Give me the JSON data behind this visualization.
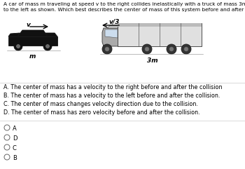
{
  "question_line1": "A car of mass m traveling at speed v to the right collides inelastically with a truck of mass 3m traveling at speed v/3",
  "question_line2": "to the left as shown. Which best describes the center of mass of this system before and after the collision?",
  "option_A": "A. The center of mass has a velocity to the right before and after the collision",
  "option_B": "B. The center of mass has a velocity to the left before and after the collision.",
  "option_C": "C. The center of mass changes velocity direction due to the collision.",
  "option_D": "D. The center of mass has zero velocity before and after the collision.",
  "answer_order": [
    "A",
    "D",
    "C",
    "B"
  ],
  "car_label": "m",
  "car_speed_label": "v",
  "truck_label": "3m",
  "truck_speed_label": "v/3",
  "bg_color": "#ffffff",
  "text_color": "#000000",
  "separator_color": "#cccccc",
  "font_size_question": 5.3,
  "font_size_options": 5.8,
  "font_size_labels": 6.5,
  "font_size_radio": 6.0
}
